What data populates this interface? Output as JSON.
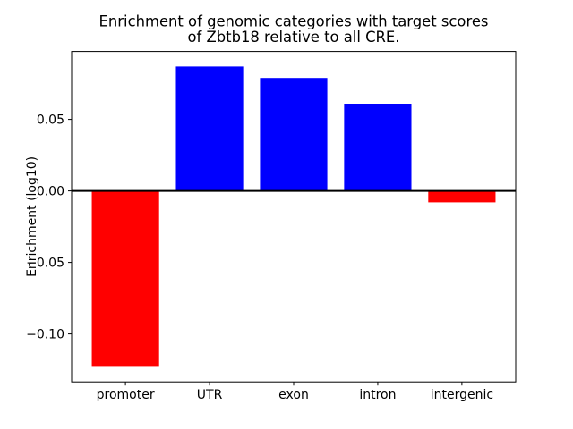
{
  "chart_data": {
    "type": "bar",
    "title_lines": [
      "Enrichment of genomic categories with target scores",
      "of Zbtb18 relative to all CRE."
    ],
    "ylabel": "Enrichment (log10)",
    "xlabel": "",
    "categories": [
      "promoter",
      "UTR",
      "exon",
      "intron",
      "intergenic"
    ],
    "values": [
      -0.123,
      0.087,
      0.079,
      0.061,
      -0.008
    ],
    "bar_colors": [
      "#ff0000",
      "#0000ff",
      "#0000ff",
      "#0000ff",
      "#ff0000"
    ],
    "positive_color": "#0000ff",
    "negative_color": "#ff0000",
    "yticks": [
      0.05,
      0.0,
      -0.05,
      -0.1
    ],
    "ytick_labels": [
      "0.05",
      "0.00",
      "−0.05",
      "−0.10"
    ],
    "ylim": [
      -0.1335,
      0.0975
    ],
    "zero_line": true,
    "grid": false,
    "legend": null,
    "background": "#ffffff",
    "axis_color": "#000000"
  }
}
